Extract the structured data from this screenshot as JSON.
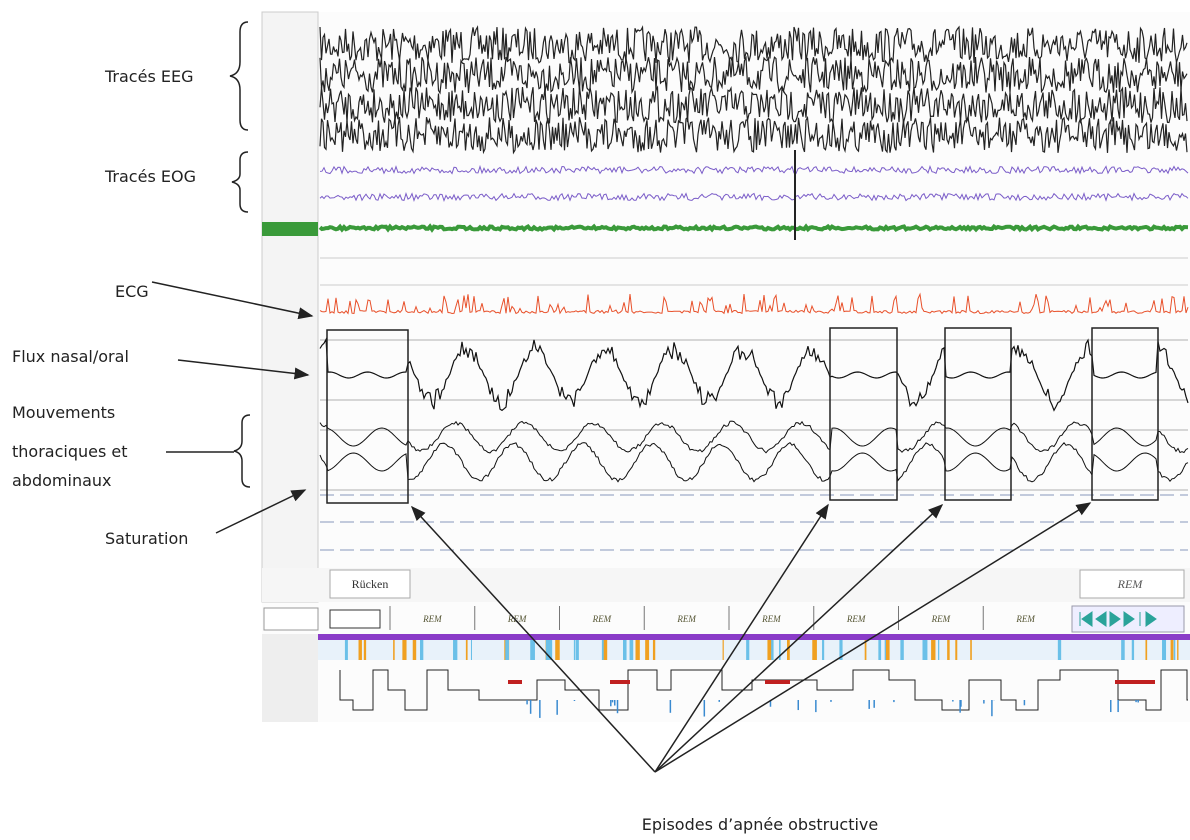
{
  "annotations": {
    "eeg": "Tracés EEG",
    "eog": "Tracés EOG",
    "ecg": "ECG",
    "flow": "Flux nasal/oral",
    "effort": [
      "Mouvements",
      "thoraciques et",
      "abdominaux"
    ],
    "saturation": "Saturation",
    "episodes": "Episodes d’apnée obstructive"
  },
  "screen": {
    "position_label": "Rücken",
    "stage_label": "REM",
    "epoch_stages": [
      "REM",
      "REM",
      "REM",
      "REM",
      "REM",
      "REM",
      "REM",
      "REM"
    ]
  }
}
